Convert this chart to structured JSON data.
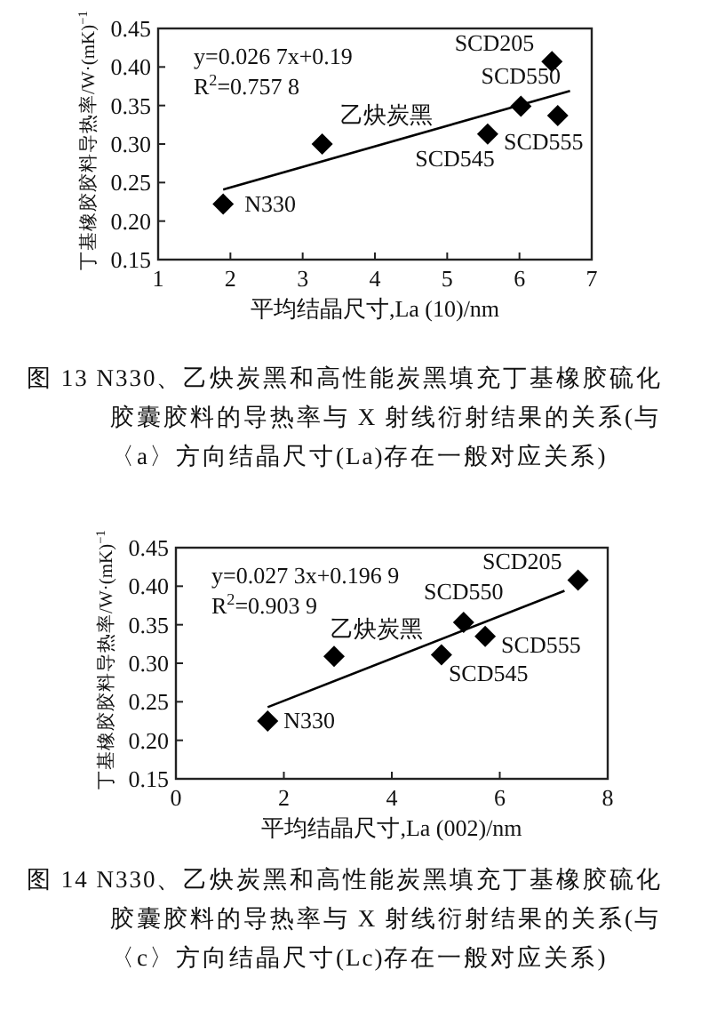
{
  "chart_data": [
    {
      "type": "scatter",
      "title": "图 13 N330、乙炔炭黑和高性能炭黑填充丁基橡胶硫化胶囊胶料的导热率与 X 射线衍射结果的关系(与〈a〉方向结晶尺寸(La)存在一般对应关系)",
      "xlabel": "平均结晶尺寸,La (10)/nm",
      "ylabel": "丁基橡胶胶料导热率/W·(mK)$^{−1}$",
      "xlim": [
        1,
        7
      ],
      "xticks": [
        1,
        2,
        3,
        4,
        5,
        6,
        7
      ],
      "ylim": [
        0.15,
        0.45
      ],
      "yticks": [
        0.15,
        {
          "value": 0.2,
          "label": "0.20"
        },
        0.25,
        {
          "value": 0.3,
          "label": "0.30"
        },
        0.35,
        {
          "value": 0.4,
          "label": "0.40"
        },
        0.45
      ],
      "series": [
        {
          "type": "scatter",
          "marker": "diamond",
          "color": "#000000",
          "x": [
            1.9,
            3.27,
            5.56,
            6.02,
            6.45,
            6.53
          ],
          "values": [
            0.222,
            0.3,
            0.313,
            0.349,
            0.407,
            0.337
          ]
        },
        {
          "type": "line",
          "color": "#000000",
          "x": [
            1.9,
            6.7
          ],
          "values": [
            0.241,
            0.369
          ]
        }
      ],
      "annotations": [
        "y=0.026 7x+0.19",
        "R$^{2}$=0.757 8",
        {
          "text": "N330",
          "x": 1.9,
          "y": 0.222
        },
        {
          "text": "乙炔炭黑",
          "x": 3.27,
          "y": 0.3
        },
        {
          "text": "SCD545",
          "x": 5.56,
          "y": 0.313
        },
        {
          "text": "SCD550",
          "x": 6.02,
          "y": 0.349
        },
        {
          "text": "SCD205",
          "x": 6.45,
          "y": 0.407
        },
        {
          "text": "SCD555",
          "x": 6.53,
          "y": 0.337
        }
      ]
    },
    {
      "type": "scatter",
      "title": "图 14 N330、乙炔炭黑和高性能炭黑填充丁基橡胶硫化胶囊胶料的导热率与 X 射线衍射结果的关系(与〈c〉方向结晶尺寸(Lc)存在一般对应关系)",
      "xlabel": "平均结晶尺寸,La (002)/nm",
      "ylabel": "丁基橡胶胶料导热率/W·(mK)$^{−1}$",
      "xlim": [
        0,
        8
      ],
      "xticks": [
        0,
        2,
        4,
        6,
        8
      ],
      "ylim": [
        0.15,
        0.45
      ],
      "yticks": [
        0.15,
        {
          "value": 0.2,
          "label": "0.20"
        },
        0.25,
        {
          "value": 0.3,
          "label": "0.30"
        },
        0.35,
        {
          "value": 0.4,
          "label": "0.40"
        },
        0.45
      ],
      "series": [
        {
          "type": "scatter",
          "marker": "diamond",
          "color": "#000000",
          "x": [
            1.7,
            2.93,
            4.92,
            5.33,
            5.73,
            7.45
          ],
          "values": [
            0.225,
            0.309,
            0.311,
            0.353,
            0.335,
            0.408
          ]
        },
        {
          "type": "line",
          "color": "#000000",
          "x": [
            1.7,
            7.2
          ],
          "values": [
            0.243,
            0.394
          ]
        }
      ],
      "annotations": [
        "y=0.027 3x+0.196 9",
        "R$^{2}$=0.903 9",
        {
          "text": "N330",
          "x": 1.7,
          "y": 0.225
        },
        {
          "text": "乙炔炭黑",
          "x": 2.93,
          "y": 0.309
        },
        {
          "text": "SCD545",
          "x": 4.92,
          "y": 0.311
        },
        {
          "text": "SCD550",
          "x": 5.33,
          "y": 0.353
        },
        {
          "text": "SCD555",
          "x": 5.73,
          "y": 0.335
        },
        {
          "text": "SCD205",
          "x": 7.45,
          "y": 0.408
        }
      ]
    }
  ]
}
